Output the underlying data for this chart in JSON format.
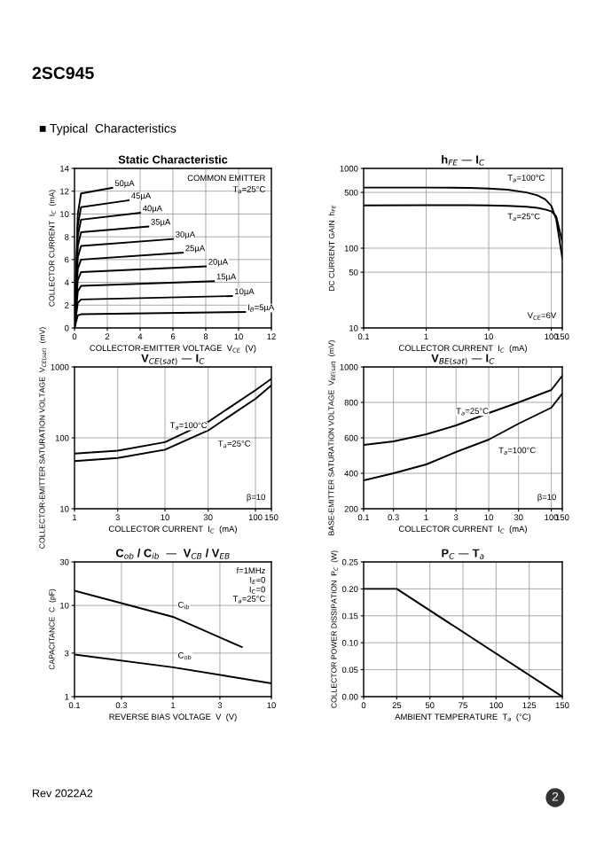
{
  "chart_data": [
    {
      "type": "line",
      "title": "Static Characteristic",
      "xlabel": "COLLECTOR-EMITTER VOLTAGE  V$_{CE}$  (V)",
      "ylabel": "COLLECTOR CURRENT  I$_{C}$  (mA)",
      "xlim": [
        0,
        12
      ],
      "ylim": [
        0,
        14
      ],
      "xticks": [
        0,
        2,
        4,
        6,
        8,
        10,
        12
      ],
      "yticks": [
        0,
        2,
        4,
        6,
        8,
        10,
        12,
        14
      ],
      "grid": true,
      "annotations": [
        "2SC945",
        "■ Typical  Characteristics",
        "COMMON EMITTER",
        "T$_{a}$=25°C"
      ],
      "series": [
        {
          "name": "50µA",
          "color": "#000000",
          "x": [
            0,
            0.2,
            0.4,
            2.3
          ],
          "values": [
            0,
            10.0,
            11.8,
            12.3
          ]
        },
        {
          "name": "45µA",
          "color": "#000000",
          "x": [
            0,
            0.2,
            0.4,
            3.3
          ],
          "values": [
            0,
            9.0,
            10.6,
            11.2
          ]
        },
        {
          "name": "40µA",
          "color": "#000000",
          "x": [
            0,
            0.2,
            0.4,
            4.0
          ],
          "values": [
            0,
            8.1,
            9.5,
            10.1
          ]
        },
        {
          "name": "35µA",
          "color": "#000000",
          "x": [
            0,
            0.2,
            0.4,
            4.5
          ],
          "values": [
            0,
            7.2,
            8.4,
            8.9
          ]
        },
        {
          "name": "30µA",
          "color": "#000000",
          "x": [
            0,
            0.2,
            0.4,
            6.0
          ],
          "values": [
            0,
            6.2,
            7.2,
            7.8
          ]
        },
        {
          "name": "25µA",
          "color": "#000000",
          "x": [
            0,
            0.2,
            0.4,
            6.6
          ],
          "values": [
            0,
            5.2,
            6.0,
            6.6
          ]
        },
        {
          "name": "20µA",
          "color": "#000000",
          "x": [
            0,
            0.2,
            0.4,
            8.0
          ],
          "values": [
            0,
            4.2,
            4.9,
            5.4
          ]
        },
        {
          "name": "15µA",
          "color": "#000000",
          "x": [
            0,
            0.2,
            0.4,
            8.5
          ],
          "values": [
            0,
            3.2,
            3.7,
            4.1
          ]
        },
        {
          "name": "10µA",
          "color": "#000000",
          "x": [
            0,
            0.2,
            0.4,
            9.6
          ],
          "values": [
            0,
            2.2,
            2.5,
            2.8
          ]
        },
        {
          "name": "I$_{B}$=5µA",
          "color": "#000000",
          "x": [
            0,
            0.2,
            0.4,
            10.4
          ],
          "values": [
            0,
            1.1,
            1.2,
            1.4
          ]
        }
      ]
    },
    {
      "type": "line",
      "title": "h$_{FE}$ — I$_{C}$",
      "xlabel": "COLLECTOR CURRENT  I$_{C}$  (mA)",
      "ylabel": "DC CURRENT GAIN  h$_{FE}$",
      "log": "xy",
      "xlim": [
        0.1,
        150
      ],
      "ylim": [
        10,
        1000
      ],
      "xticks": [
        0.1,
        1,
        10,
        100,
        150
      ],
      "yticks": [
        10,
        50,
        100,
        500,
        1000
      ],
      "grid": true,
      "annotations": [
        "V$_{CE}$=6V"
      ],
      "series": [
        {
          "name": "T$_{a}$=100°C",
          "color": "#000000",
          "x": [
            0.1,
            1,
            5,
            10,
            20,
            40,
            60,
            80,
            100,
            120,
            150
          ],
          "values": [
            575,
            575,
            570,
            560,
            540,
            500,
            460,
            410,
            340,
            230,
            75
          ]
        },
        {
          "name": "T$_{a}$=25°C",
          "color": "#000000",
          "x": [
            0.1,
            1,
            5,
            10,
            20,
            40,
            60,
            80,
            100,
            120,
            150
          ],
          "values": [
            343,
            345,
            345,
            343,
            340,
            330,
            320,
            305,
            290,
            250,
            120
          ]
        }
      ]
    },
    {
      "type": "line",
      "title": "V$_{CE(sat)}$ — I$_{C}$",
      "xlabel": "COLLECTOR CURRENT  I$_{C}$  (mA)",
      "ylabel": "COLLECTOR-EMITTER SATURATION VOLTAGE  V$_{CE(sat)}$  (mV)",
      "log": "xy",
      "xlim": [
        1,
        150
      ],
      "ylim": [
        10,
        1000
      ],
      "xticks": [
        1,
        3,
        10,
        30,
        100,
        150
      ],
      "yticks": [
        10,
        100,
        1000
      ],
      "grid": true,
      "annotations": [
        "β=10"
      ],
      "series": [
        {
          "name": "T$_{a}$=100°C",
          "color": "#000000",
          "x": [
            1,
            3,
            10,
            30,
            100,
            150
          ],
          "values": [
            60,
            66,
            87,
            168,
            470,
            680
          ]
        },
        {
          "name": "T$_{a}$=25°C",
          "color": "#000000",
          "x": [
            1,
            3,
            10,
            30,
            100,
            150
          ],
          "values": [
            47,
            52,
            68,
            127,
            355,
            550
          ]
        }
      ]
    },
    {
      "type": "line",
      "title": "V$_{BE(sat)}$ — I$_{C}$",
      "xlabel": "COLLECTOR CURRENT  I$_{C}$  (mA)",
      "ylabel": "BASE-EMITTER SATURATION VOLTAGE  V$_{BE(sat)}$  (mV)",
      "log": "x",
      "xlim": [
        0.1,
        150
      ],
      "ylim": [
        200,
        1000
      ],
      "xticks": [
        0.1,
        0.3,
        1,
        3,
        10,
        30,
        100,
        150
      ],
      "yticks": [
        200,
        400,
        600,
        800,
        1000
      ],
      "grid": true,
      "annotations": [
        "β=10"
      ],
      "series": [
        {
          "name": "T$_{a}$=25°C",
          "color": "#000000",
          "x": [
            0.1,
            0.3,
            1,
            3,
            10,
            30,
            100,
            150
          ],
          "values": [
            560,
            580,
            620,
            670,
            740,
            800,
            870,
            950
          ]
        },
        {
          "name": "T$_{a}$=100°C",
          "color": "#000000",
          "x": [
            0.1,
            0.3,
            1,
            3,
            10,
            30,
            100,
            150
          ],
          "values": [
            360,
            400,
            450,
            520,
            590,
            680,
            770,
            850
          ]
        }
      ]
    },
    {
      "type": "line",
      "title": "C$_{ob}$ / C$_{ib}$  —  V$_{CB}$ / V$_{EB}$",
      "xlabel": "REVERSE BIAS VOLTAGE  V  (V)",
      "ylabel": "CAPACITANCE  C  (pF)",
      "log": "xy",
      "xlim": [
        0.1,
        10
      ],
      "ylim": [
        1,
        30
      ],
      "xticks": [
        0.1,
        0.3,
        1,
        3,
        10
      ],
      "yticks": [
        1,
        3,
        10,
        30
      ],
      "grid": true,
      "annotations": [
        "f=1MHz",
        "I$_{E}$=0",
        "I$_{C}$=0",
        "T$_{a}$=25°C"
      ],
      "series": [
        {
          "name": "C$_{ib}$",
          "color": "#000000",
          "x": [
            0.1,
            1,
            5
          ],
          "values": [
            14.5,
            7.5,
            3.5
          ]
        },
        {
          "name": "C$_{ob}$",
          "color": "#000000",
          "x": [
            0.1,
            1,
            10
          ],
          "values": [
            2.9,
            2.1,
            1.4
          ]
        }
      ]
    },
    {
      "type": "line",
      "title": "P$_{C}$ — T$_{a}$",
      "xlabel": "AMBIENT TEMPERATURE  T$_{a}$  (°C)",
      "ylabel": "COLLECTOR POWER DISSIPATION  P$_{C}$  (W)",
      "xlim": [
        0,
        150
      ],
      "ylim": [
        0,
        0.25
      ],
      "xticks": [
        0,
        25,
        50,
        75,
        100,
        125,
        150
      ],
      "yticks": [
        {
          "value": 0,
          "label": "0.00"
        },
        0.05,
        {
          "value": 0.1,
          "label": "0.10"
        },
        0.15,
        {
          "value": 0.2,
          "label": "0.20"
        },
        0.25
      ],
      "grid": true,
      "annotations": [
        "Rev 2022A2",
        "2"
      ],
      "series": [
        {
          "color": "#000000",
          "x": [
            0,
            25,
            150
          ],
          "values": [
            0.2,
            0.2,
            0
          ]
        }
      ]
    }
  ]
}
